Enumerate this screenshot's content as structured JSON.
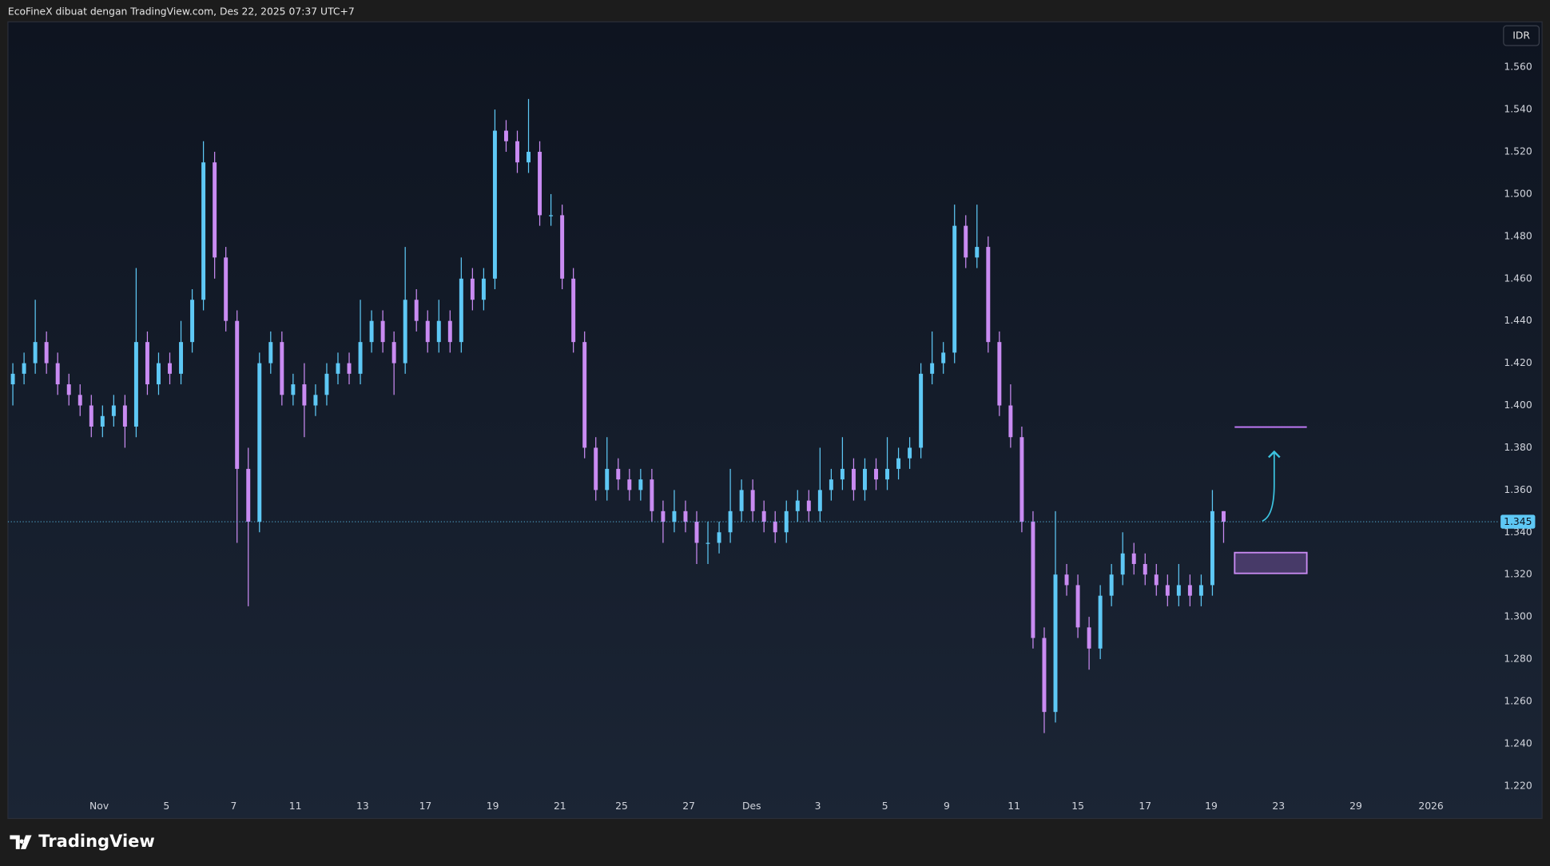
{
  "chart_data": {
    "type": "candlestick",
    "title": "EcoFineX dibuat dengan TradingView.com, Des 22, 2025 07:37 UTC+7",
    "currency": "IDR",
    "brand": "TradingView",
    "up_color": "#5ec8f5",
    "down_color": "#c98bf2",
    "grid": false,
    "last_price": 1.345,
    "xlim": [
      -0.44,
      132
    ],
    "xticks": [
      {
        "value": 7.7,
        "label": "Nov"
      },
      {
        "value": 13.7,
        "label": "5"
      },
      {
        "value": 19.7,
        "label": "7"
      },
      {
        "value": 25.2,
        "label": "11"
      },
      {
        "value": 31.2,
        "label": "13"
      },
      {
        "value": 36.8,
        "label": "17"
      },
      {
        "value": 42.8,
        "label": "19"
      },
      {
        "value": 48.8,
        "label": "21"
      },
      {
        "value": 54.3,
        "label": "25"
      },
      {
        "value": 60.3,
        "label": "27"
      },
      {
        "value": 65.9,
        "label": "Des"
      },
      {
        "value": 71.8,
        "label": "3"
      },
      {
        "value": 77.8,
        "label": "5"
      },
      {
        "value": 83.3,
        "label": "9"
      },
      {
        "value": 89.3,
        "label": "11"
      },
      {
        "value": 95,
        "label": "15"
      },
      {
        "value": 101,
        "label": "17"
      },
      {
        "value": 106.9,
        "label": "19"
      },
      {
        "value": 112.9,
        "label": "23"
      },
      {
        "value": 119.8,
        "label": "29"
      },
      {
        "value": 126.5,
        "label": "2026"
      }
    ],
    "ylim": [
      1.2046,
      1.5815
    ],
    "yticks": [
      {
        "value": 1.22,
        "label": "1.220"
      },
      {
        "value": 1.24,
        "label": "1.240"
      },
      {
        "value": 1.26,
        "label": "1.260"
      },
      {
        "value": 1.28,
        "label": "1.280"
      },
      {
        "value": 1.3,
        "label": "1.300"
      },
      {
        "value": 1.32,
        "label": "1.320"
      },
      {
        "value": 1.34,
        "label": "1.340"
      },
      {
        "value": 1.36,
        "label": "1.360"
      },
      {
        "value": 1.38,
        "label": "1.380"
      },
      {
        "value": 1.4,
        "label": "1.400"
      },
      {
        "value": 1.42,
        "label": "1.420"
      },
      {
        "value": 1.44,
        "label": "1.440"
      },
      {
        "value": 1.46,
        "label": "1.460"
      },
      {
        "value": 1.48,
        "label": "1.480"
      },
      {
        "value": 1.5,
        "label": "1.500"
      },
      {
        "value": 1.52,
        "label": "1.520"
      },
      {
        "value": 1.54,
        "label": "1.540"
      },
      {
        "value": 1.56,
        "label": "1.560"
      }
    ],
    "open": [
      1.41,
      1.415,
      1.42,
      1.43,
      1.42,
      1.41,
      1.405,
      1.4,
      1.39,
      1.395,
      1.4,
      1.39,
      1.43,
      1.41,
      1.42,
      1.415,
      1.43,
      1.45,
      1.515,
      1.47,
      1.44,
      1.37,
      1.345,
      1.42,
      1.43,
      1.405,
      1.41,
      1.4,
      1.405,
      1.415,
      1.42,
      1.415,
      1.43,
      1.44,
      1.43,
      1.42,
      1.45,
      1.44,
      1.43,
      1.44,
      1.43,
      1.46,
      1.45,
      1.46,
      1.53,
      1.525,
      1.515,
      1.52,
      1.49,
      1.49,
      1.46,
      1.43,
      1.38,
      1.36,
      1.37,
      1.365,
      1.36,
      1.365,
      1.35,
      1.345,
      1.35,
      1.345,
      1.335,
      1.335,
      1.34,
      1.35,
      1.36,
      1.35,
      1.345,
      1.34,
      1.35,
      1.355,
      1.35,
      1.36,
      1.365,
      1.37,
      1.36,
      1.37,
      1.365,
      1.37,
      1.375,
      1.38,
      1.415,
      1.42,
      1.425,
      1.485,
      1.47,
      1.475,
      1.43,
      1.4,
      1.385,
      1.345,
      1.29,
      1.255,
      1.32,
      1.315,
      1.295,
      1.285,
      1.31,
      1.32,
      1.33,
      1.325,
      1.32,
      1.315,
      1.31,
      1.315,
      1.31,
      1.315,
      1.35
    ],
    "high": [
      1.42,
      1.425,
      1.45,
      1.435,
      1.425,
      1.415,
      1.41,
      1.405,
      1.4,
      1.405,
      1.405,
      1.465,
      1.435,
      1.425,
      1.425,
      1.44,
      1.455,
      1.525,
      1.52,
      1.475,
      1.445,
      1.38,
      1.425,
      1.435,
      1.435,
      1.415,
      1.42,
      1.41,
      1.42,
      1.425,
      1.425,
      1.45,
      1.445,
      1.445,
      1.435,
      1.475,
      1.455,
      1.445,
      1.45,
      1.445,
      1.47,
      1.465,
      1.465,
      1.54,
      1.535,
      1.53,
      1.545,
      1.525,
      1.5,
      1.495,
      1.465,
      1.435,
      1.385,
      1.385,
      1.375,
      1.37,
      1.37,
      1.37,
      1.355,
      1.36,
      1.355,
      1.35,
      1.345,
      1.345,
      1.37,
      1.365,
      1.365,
      1.355,
      1.35,
      1.355,
      1.36,
      1.36,
      1.38,
      1.37,
      1.385,
      1.375,
      1.375,
      1.375,
      1.385,
      1.38,
      1.385,
      1.42,
      1.435,
      1.43,
      1.495,
      1.49,
      1.495,
      1.48,
      1.435,
      1.41,
      1.39,
      1.35,
      1.295,
      1.35,
      1.325,
      1.32,
      1.3,
      1.315,
      1.325,
      1.34,
      1.335,
      1.33,
      1.325,
      1.32,
      1.325,
      1.32,
      1.32,
      1.36,
      1.35
    ],
    "low": [
      1.4,
      1.41,
      1.415,
      1.415,
      1.405,
      1.4,
      1.395,
      1.385,
      1.385,
      1.39,
      1.38,
      1.385,
      1.405,
      1.405,
      1.41,
      1.41,
      1.425,
      1.445,
      1.46,
      1.435,
      1.335,
      1.305,
      1.34,
      1.415,
      1.4,
      1.4,
      1.385,
      1.395,
      1.4,
      1.41,
      1.41,
      1.41,
      1.425,
      1.425,
      1.405,
      1.415,
      1.435,
      1.425,
      1.425,
      1.425,
      1.425,
      1.445,
      1.445,
      1.455,
      1.52,
      1.51,
      1.51,
      1.485,
      1.485,
      1.455,
      1.425,
      1.375,
      1.355,
      1.355,
      1.36,
      1.355,
      1.355,
      1.345,
      1.335,
      1.34,
      1.34,
      1.325,
      1.325,
      1.33,
      1.335,
      1.345,
      1.345,
      1.34,
      1.335,
      1.335,
      1.345,
      1.345,
      1.345,
      1.355,
      1.36,
      1.355,
      1.355,
      1.36,
      1.36,
      1.365,
      1.37,
      1.375,
      1.41,
      1.415,
      1.42,
      1.465,
      1.465,
      1.425,
      1.395,
      1.38,
      1.34,
      1.285,
      1.245,
      1.25,
      1.31,
      1.29,
      1.275,
      1.28,
      1.305,
      1.315,
      1.32,
      1.315,
      1.31,
      1.305,
      1.305,
      1.305,
      1.305,
      1.31,
      1.335
    ],
    "close": [
      1.415,
      1.42,
      1.43,
      1.42,
      1.41,
      1.405,
      1.4,
      1.39,
      1.395,
      1.4,
      1.39,
      1.43,
      1.41,
      1.42,
      1.415,
      1.43,
      1.45,
      1.515,
      1.47,
      1.44,
      1.37,
      1.345,
      1.42,
      1.43,
      1.405,
      1.41,
      1.4,
      1.405,
      1.415,
      1.42,
      1.415,
      1.43,
      1.44,
      1.43,
      1.42,
      1.45,
      1.44,
      1.43,
      1.44,
      1.43,
      1.46,
      1.45,
      1.46,
      1.53,
      1.525,
      1.515,
      1.52,
      1.49,
      1.49,
      1.46,
      1.43,
      1.38,
      1.36,
      1.37,
      1.365,
      1.36,
      1.365,
      1.35,
      1.345,
      1.35,
      1.345,
      1.335,
      1.335,
      1.34,
      1.35,
      1.36,
      1.35,
      1.345,
      1.34,
      1.35,
      1.355,
      1.35,
      1.36,
      1.365,
      1.37,
      1.36,
      1.37,
      1.365,
      1.37,
      1.375,
      1.38,
      1.415,
      1.42,
      1.425,
      1.485,
      1.47,
      1.475,
      1.43,
      1.4,
      1.385,
      1.345,
      1.29,
      1.255,
      1.32,
      1.315,
      1.295,
      1.285,
      1.31,
      1.32,
      1.33,
      1.325,
      1.32,
      1.315,
      1.31,
      1.315,
      1.31,
      1.315,
      1.35,
      1.345
    ]
  }
}
